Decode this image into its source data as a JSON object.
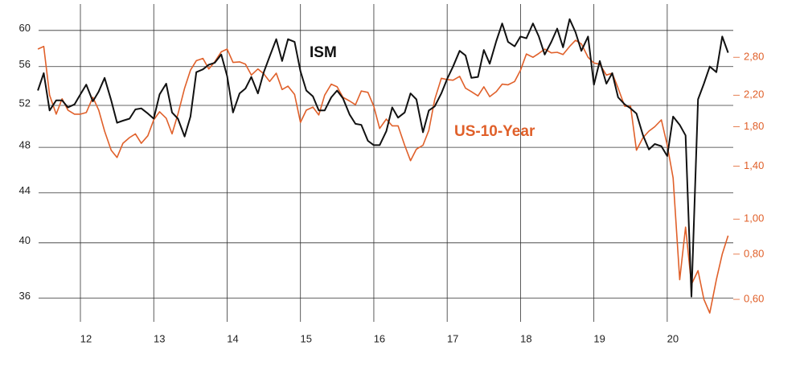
{
  "chart_data": {
    "type": "line",
    "x": [
      11.42,
      11.5,
      11.58,
      11.67,
      11.75,
      11.83,
      11.92,
      12,
      12.08,
      12.17,
      12.25,
      12.33,
      12.42,
      12.5,
      12.58,
      12.67,
      12.75,
      12.83,
      12.92,
      13,
      13.08,
      13.17,
      13.25,
      13.33,
      13.42,
      13.5,
      13.58,
      13.67,
      13.75,
      13.83,
      13.92,
      14,
      14.08,
      14.17,
      14.25,
      14.33,
      14.42,
      14.5,
      14.58,
      14.67,
      14.75,
      14.83,
      14.92,
      15,
      15.08,
      15.17,
      15.25,
      15.33,
      15.42,
      15.5,
      15.58,
      15.67,
      15.75,
      15.83,
      15.92,
      16,
      16.08,
      16.17,
      16.25,
      16.33,
      16.42,
      16.5,
      16.58,
      16.67,
      16.75,
      16.83,
      16.92,
      17,
      17.08,
      17.17,
      17.25,
      17.33,
      17.42,
      17.5,
      17.58,
      17.67,
      17.75,
      17.83,
      17.92,
      18,
      18.08,
      18.17,
      18.25,
      18.33,
      18.42,
      18.5,
      18.58,
      18.67,
      18.75,
      18.83,
      18.92,
      19,
      19.08,
      19.17,
      19.25,
      19.33,
      19.42,
      19.5,
      19.58,
      19.67,
      19.75,
      19.83,
      19.92,
      20,
      20.08,
      20.17,
      20.25,
      20.33,
      20.42,
      20.5,
      20.58,
      20.67,
      20.75,
      20.83
    ],
    "series": [
      {
        "name": "ISM",
        "color": "#111111",
        "values": [
          53.5,
          55.3,
          51.5,
          52.5,
          52.5,
          51.8,
          52.1,
          53.1,
          54.1,
          52.4,
          53.4,
          54.8,
          52.5,
          50.3,
          50.5,
          50.7,
          51.6,
          51.7,
          51.2,
          50.7,
          53.1,
          54.2,
          51.3,
          50.7,
          49.0,
          50.9,
          55.4,
          55.7,
          56.2,
          56.4,
          57.3,
          55.0,
          51.3,
          53.2,
          53.7,
          54.9,
          53.2,
          55.4,
          57.1,
          59.0,
          56.6,
          59.0,
          58.7,
          55.5,
          53.5,
          52.9,
          51.5,
          51.5,
          52.8,
          53.5,
          52.7,
          51.1,
          50.2,
          50.1,
          48.6,
          48.2,
          48.2,
          49.5,
          51.8,
          50.8,
          51.3,
          53.2,
          52.6,
          49.4,
          51.5,
          51.9,
          53.2,
          54.7,
          56.0,
          57.7,
          57.2,
          54.8,
          54.9,
          57.8,
          56.3,
          58.8,
          60.8,
          58.7,
          58.2,
          59.3,
          59.1,
          60.8,
          59.3,
          57.3,
          58.7,
          60.2,
          58.1,
          61.3,
          59.8,
          57.7,
          59.3,
          54.1,
          56.6,
          54.2,
          55.3,
          52.8,
          52.1,
          51.7,
          51.2,
          49.1,
          47.8,
          48.3,
          48.1,
          47.2,
          50.9,
          50.1,
          49.1,
          36.1,
          52.6,
          54.2,
          56.0,
          55.4,
          59.3,
          57.5
        ]
      },
      {
        "name": "US-10-Year",
        "color": "#e0602a",
        "axis": "y2",
        "values": [
          2.95,
          3.0,
          2.2,
          1.95,
          2.15,
          2.0,
          1.95,
          1.95,
          1.97,
          2.17,
          2.0,
          1.75,
          1.55,
          1.48,
          1.62,
          1.68,
          1.72,
          1.62,
          1.7,
          1.88,
          1.98,
          1.9,
          1.72,
          1.95,
          2.3,
          2.58,
          2.74,
          2.78,
          2.6,
          2.72,
          2.9,
          2.95,
          2.71,
          2.72,
          2.68,
          2.5,
          2.6,
          2.52,
          2.4,
          2.53,
          2.28,
          2.33,
          2.21,
          1.85,
          2.0,
          2.04,
          1.94,
          2.2,
          2.36,
          2.32,
          2.17,
          2.12,
          2.07,
          2.26,
          2.24,
          2.05,
          1.78,
          1.89,
          1.81,
          1.81,
          1.6,
          1.45,
          1.56,
          1.6,
          1.76,
          2.14,
          2.45,
          2.43,
          2.42,
          2.48,
          2.3,
          2.25,
          2.19,
          2.32,
          2.18,
          2.25,
          2.36,
          2.35,
          2.4,
          2.58,
          2.86,
          2.8,
          2.87,
          2.95,
          2.88,
          2.89,
          2.85,
          3.0,
          3.12,
          3.05,
          2.8,
          2.7,
          2.68,
          2.5,
          2.53,
          2.3,
          2.05,
          2.05,
          1.55,
          1.68,
          1.75,
          1.8,
          1.88,
          1.6,
          1.3,
          0.68,
          0.95,
          0.66,
          0.72,
          0.6,
          0.55,
          0.68,
          0.8,
          0.9
        ]
      }
    ],
    "xlim": [
      11.43,
      20.9
    ],
    "xticks": [
      12,
      13,
      14,
      15,
      16,
      17,
      18,
      19,
      20
    ],
    "ylim": [
      34.4,
      63.1
    ],
    "yticks": [
      36,
      40,
      44,
      48,
      52,
      56,
      60
    ],
    "yscale": "log",
    "y2lim": [
      0.52,
      3.93
    ],
    "y2scale": "log",
    "y2ticks": [
      {
        "value": 0.6,
        "label": "0,60"
      },
      {
        "value": 0.8,
        "label": "0,80"
      },
      {
        "value": 1.0,
        "label": "1,00"
      },
      {
        "value": 1.4,
        "label": "1,40"
      },
      {
        "value": 1.8,
        "label": "1,80"
      },
      {
        "value": 2.2,
        "label": "2,20"
      },
      {
        "value": 2.8,
        "label": "2,80"
      }
    ],
    "grid": true,
    "y2_tick_color": "#e0602a"
  }
}
